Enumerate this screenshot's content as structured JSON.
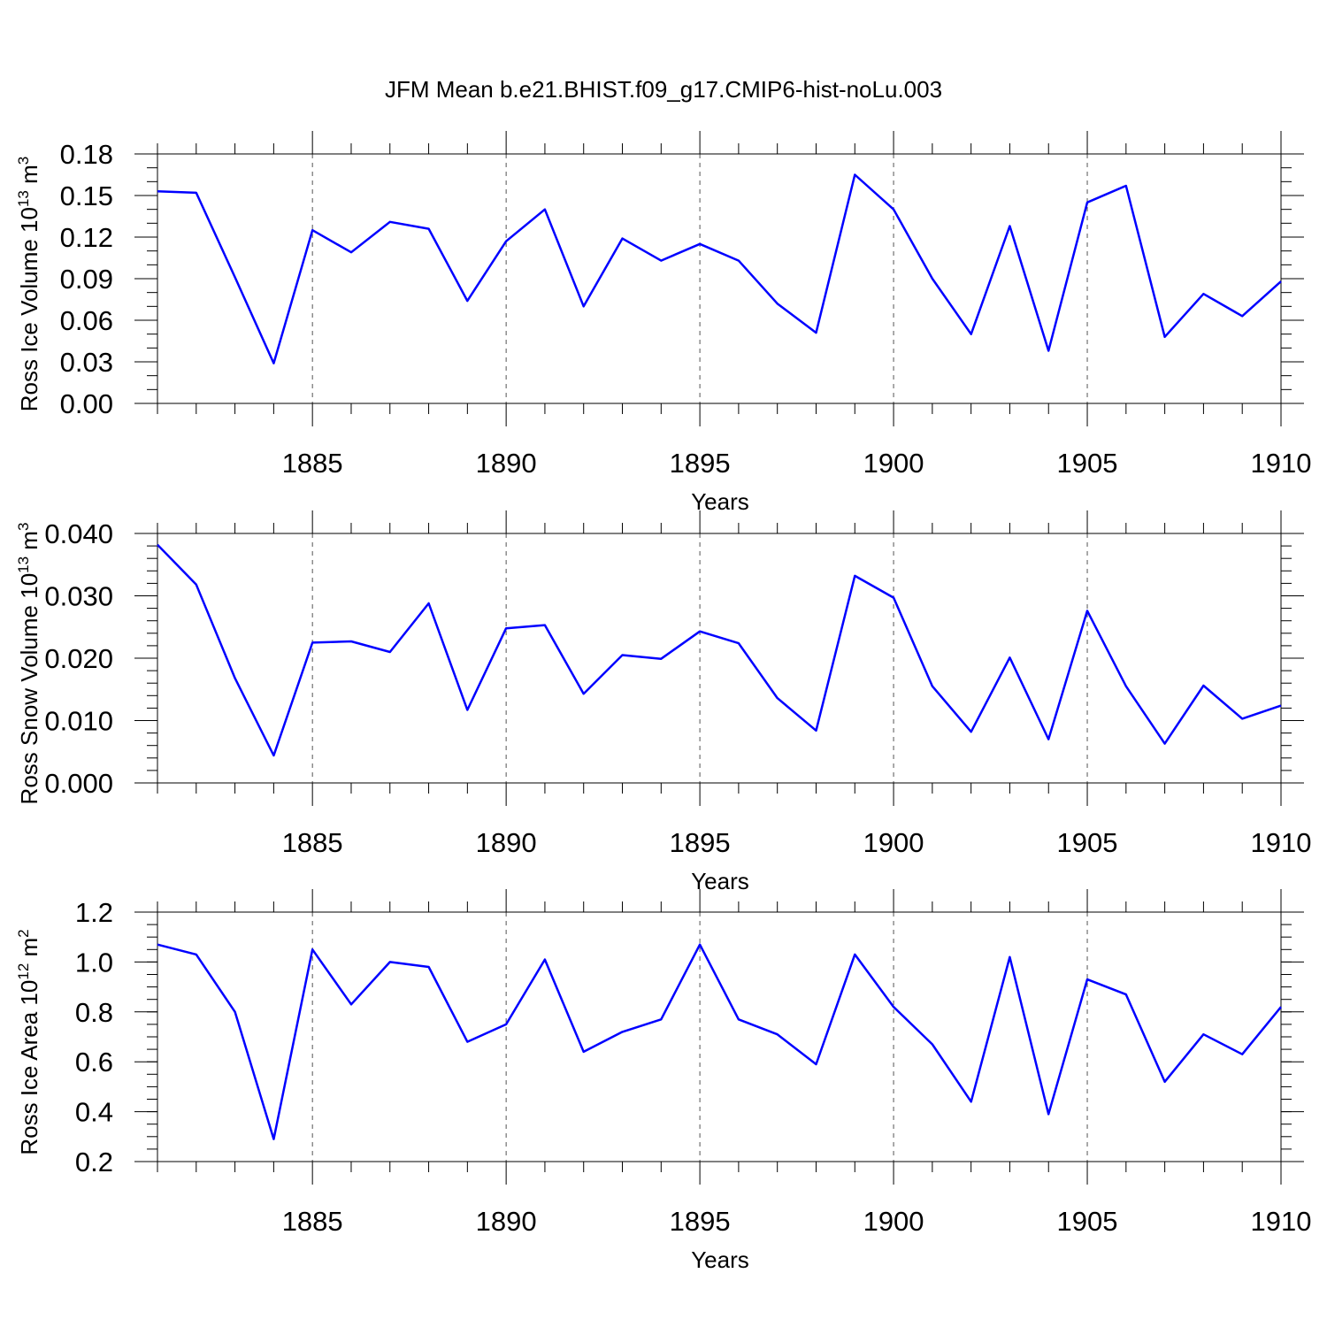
{
  "title": "JFM Mean b.e21.BHIST.f09_g17.CMIP6-hist-noLu.003",
  "chart_data": [
    {
      "type": "line",
      "ylabel": "Ross Ice Volume 10",
      "ylabel_exp": "13",
      "ylabel_unit": " m",
      "ylabel_unit_exp": "3",
      "xlabel": "Years",
      "xlim": [
        1881,
        1910
      ],
      "ylim": [
        0.0,
        0.18
      ],
      "yticks": [
        "0.00",
        "0.03",
        "0.06",
        "0.09",
        "0.12",
        "0.15",
        "0.18"
      ],
      "ytick_values": [
        0.0,
        0.03,
        0.06,
        0.09,
        0.12,
        0.15,
        0.18
      ],
      "yminor_step": 0.01,
      "xticks": [
        "1885",
        "1890",
        "1895",
        "1900",
        "1905",
        "1910"
      ],
      "xtick_values": [
        1885,
        1890,
        1895,
        1900,
        1905,
        1910
      ],
      "grid": "vertical dashed at major x ticks",
      "color": "#0000ff",
      "x": [
        1881,
        1882,
        1883,
        1884,
        1885,
        1886,
        1887,
        1888,
        1889,
        1890,
        1891,
        1892,
        1893,
        1894,
        1895,
        1896,
        1897,
        1898,
        1899,
        1900,
        1901,
        1902,
        1903,
        1904,
        1905,
        1906,
        1907,
        1908,
        1909,
        1910
      ],
      "values": [
        0.153,
        0.152,
        0.091,
        0.029,
        0.125,
        0.109,
        0.131,
        0.126,
        0.074,
        0.117,
        0.14,
        0.07,
        0.119,
        0.103,
        0.115,
        0.103,
        0.072,
        0.051,
        0.165,
        0.14,
        0.09,
        0.05,
        0.128,
        0.038,
        0.145,
        0.157,
        0.048,
        0.079,
        0.063,
        0.088
      ]
    },
    {
      "type": "line",
      "ylabel": "Ross Snow Volume 10",
      "ylabel_exp": "13",
      "ylabel_unit": " m",
      "ylabel_unit_exp": "3",
      "xlabel": "Years",
      "xlim": [
        1881,
        1910
      ],
      "ylim": [
        0.0,
        0.04
      ],
      "yticks": [
        "0.000",
        "0.010",
        "0.020",
        "0.030",
        "0.040"
      ],
      "ytick_values": [
        0.0,
        0.01,
        0.02,
        0.03,
        0.04
      ],
      "yminor_step": 0.002,
      "xticks": [
        "1885",
        "1890",
        "1895",
        "1900",
        "1905",
        "1910"
      ],
      "xtick_values": [
        1885,
        1890,
        1895,
        1900,
        1905,
        1910
      ],
      "grid": "vertical dashed at major x ticks",
      "color": "#0000ff",
      "x": [
        1881,
        1882,
        1883,
        1884,
        1885,
        1886,
        1887,
        1888,
        1889,
        1890,
        1891,
        1892,
        1893,
        1894,
        1895,
        1896,
        1897,
        1898,
        1899,
        1900,
        1901,
        1902,
        1903,
        1904,
        1905,
        1906,
        1907,
        1908,
        1909,
        1910
      ],
      "values": [
        0.0382,
        0.0318,
        0.0168,
        0.0044,
        0.0225,
        0.0227,
        0.021,
        0.0288,
        0.0117,
        0.0248,
        0.0253,
        0.0143,
        0.0205,
        0.0199,
        0.0243,
        0.0224,
        0.0136,
        0.0084,
        0.0332,
        0.0297,
        0.0155,
        0.0082,
        0.0201,
        0.007,
        0.0276,
        0.0155,
        0.0063,
        0.0156,
        0.0103,
        0.0124
      ]
    },
    {
      "type": "line",
      "ylabel": "Ross Ice Area 10",
      "ylabel_exp": "12",
      "ylabel_unit": " m",
      "ylabel_unit_exp": "2",
      "xlabel": "Years",
      "xlim": [
        1881,
        1910
      ],
      "ylim": [
        0.2,
        1.2
      ],
      "yticks": [
        "0.2",
        "0.4",
        "0.6",
        "0.8",
        "1.0",
        "1.2"
      ],
      "ytick_values": [
        0.2,
        0.4,
        0.6,
        0.8,
        1.0,
        1.2
      ],
      "yminor_step": 0.05,
      "xticks": [
        "1885",
        "1890",
        "1895",
        "1900",
        "1905",
        "1910"
      ],
      "xtick_values": [
        1885,
        1890,
        1895,
        1900,
        1905,
        1910
      ],
      "grid": "vertical dashed at major x ticks",
      "color": "#0000ff",
      "x": [
        1881,
        1882,
        1883,
        1884,
        1885,
        1886,
        1887,
        1888,
        1889,
        1890,
        1891,
        1892,
        1893,
        1894,
        1895,
        1896,
        1897,
        1898,
        1899,
        1900,
        1901,
        1902,
        1903,
        1904,
        1905,
        1906,
        1907,
        1908,
        1909,
        1910
      ],
      "values": [
        1.07,
        1.03,
        0.8,
        0.29,
        1.05,
        0.83,
        1.0,
        0.98,
        0.68,
        0.75,
        1.01,
        0.64,
        0.72,
        0.77,
        1.07,
        0.77,
        0.71,
        0.59,
        1.03,
        0.82,
        0.67,
        0.44,
        1.02,
        0.39,
        0.93,
        0.87,
        0.52,
        0.71,
        0.63,
        0.82
      ]
    }
  ]
}
